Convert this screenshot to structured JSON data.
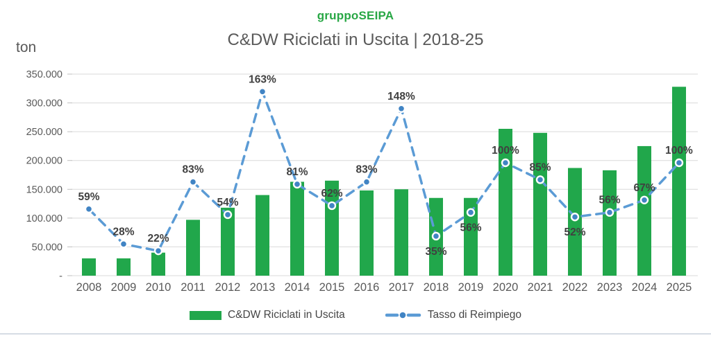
{
  "brand": "gruppoSEIPA",
  "title": "C&DW Riciclati in Uscita | 2018-25",
  "y_axis_unit": "ton",
  "legend": {
    "bars_label": "C&DW Riciclati in Uscita",
    "line_label": "Tasso di Reimpiego"
  },
  "colors": {
    "bar": "#21A74B",
    "line": "#5B9BD5",
    "marker_fill": "#4184C4",
    "marker_ring": "#FFFFFF",
    "brand_text": "#28A745",
    "title_text": "#595959",
    "axis_text": "#595959",
    "data_label_text": "#404040",
    "gridline": "#D9D9D9",
    "tick_mark": "#BFBFBF",
    "bottom_divider": "#D6DCE4"
  },
  "chart_data": {
    "type": "bar",
    "subtype": "bar+line combo",
    "title": "C&DW Riciclati in Uscita | 2018-25",
    "categories": [
      "2008",
      "2009",
      "2010",
      "2011",
      "2012",
      "2013",
      "2014",
      "2015",
      "2016",
      "2017",
      "2018",
      "2019",
      "2020",
      "2021",
      "2022",
      "2023",
      "2024",
      "2025"
    ],
    "series": [
      {
        "name": "C&DW Riciclati in Uscita",
        "type": "bar",
        "unit": "ton",
        "axis": "primary",
        "values": [
          30000,
          30000,
          40000,
          97000,
          118000,
          140000,
          163000,
          165000,
          148000,
          150000,
          135000,
          135000,
          255000,
          248000,
          187000,
          183000,
          225000,
          328000
        ]
      },
      {
        "name": "Tasso di Reimpiego",
        "type": "line",
        "unit": "%",
        "axis": "secondary (hidden)",
        "style": "dashed-with-round-markers",
        "values": [
          59,
          28,
          22,
          83,
          54,
          163,
          81,
          62,
          83,
          148,
          35,
          56,
          100,
          85,
          52,
          56,
          67,
          100
        ],
        "data_labels": [
          "59%",
          "28%",
          "22%",
          "83%",
          "54%",
          "163%",
          "81%",
          "62%",
          "83%",
          "148%",
          "35%",
          "56%",
          "100%",
          "85%",
          "52%",
          "56%",
          "67%",
          "100%"
        ],
        "labels_below_for": [
          "2018",
          "2019",
          "2022"
        ]
      }
    ],
    "y_axis": {
      "label": "ton",
      "min": 0,
      "max": 350000,
      "tick_interval": 50000,
      "tick_labels": [
        "-",
        "50.000",
        "100.000",
        "150.000",
        "200.000",
        "250.000",
        "300.000",
        "350.000"
      ]
    },
    "grid": "horizontal",
    "legend_position": "bottom"
  }
}
